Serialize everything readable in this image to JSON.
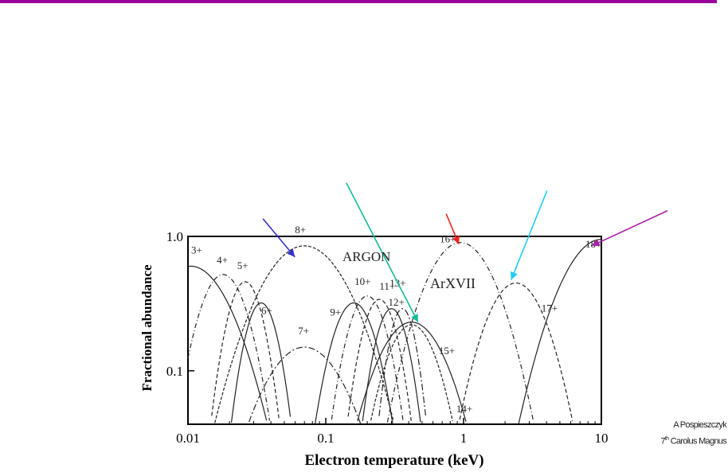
{
  "header": {
    "rule_color": "#990099"
  },
  "chart_data": {
    "type": "line",
    "title": "",
    "xlabel": "Electron temperature (keV)",
    "ylabel": "Fractional abundance",
    "xscale": "log",
    "yscale": "log",
    "xlim": [
      0.01,
      10
    ],
    "ylim": [
      0.04,
      1.0
    ],
    "xticks": [
      "0.01",
      "0.1",
      "1",
      "10"
    ],
    "yticks": [
      "1.0",
      "0.1"
    ],
    "grid": false,
    "legend": "none",
    "annotations": [
      "ARGON",
      "ArXVII"
    ],
    "series": [
      {
        "name": "3+",
        "peak_x": 0.0105,
        "peak_y": 0.6
      },
      {
        "name": "4+",
        "peak_x": 0.018,
        "peak_y": 0.52
      },
      {
        "name": "5+",
        "peak_x": 0.026,
        "peak_y": 0.46
      },
      {
        "name": "6+",
        "peak_x": 0.034,
        "peak_y": 0.32
      },
      {
        "name": "7+",
        "peak_x": 0.07,
        "peak_y": 0.15
      },
      {
        "name": "8+",
        "peak_x": 0.07,
        "peak_y": 0.85
      },
      {
        "name": "9+",
        "peak_x": 0.16,
        "peak_y": 0.32
      },
      {
        "name": "10+",
        "peak_x": 0.2,
        "peak_y": 0.36
      },
      {
        "name": "11+",
        "peak_x": 0.245,
        "peak_y": 0.34
      },
      {
        "name": "12+",
        "peak_x": 0.3,
        "peak_y": 0.29
      },
      {
        "name": "13+",
        "peak_x": 0.36,
        "peak_y": 0.29
      },
      {
        "name": "14+",
        "peak_x": 0.42,
        "peak_y": 0.22
      },
      {
        "name": "15+",
        "peak_x": 0.42,
        "peak_y": 0.23
      },
      {
        "name": "16+",
        "peak_x": 0.95,
        "peak_y": 0.9
      },
      {
        "name": "17+",
        "peak_x": 2.4,
        "peak_y": 0.45
      },
      {
        "name": "18+",
        "peak_x": 10,
        "peak_y": 0.95
      }
    ],
    "arrows": [
      {
        "color": "#3333cc",
        "points_to": "8+"
      },
      {
        "color": "#11bb99",
        "points_to": "15+"
      },
      {
        "color": "#ee2222",
        "points_to": "16+"
      },
      {
        "color": "#22ccee",
        "points_to": "17+"
      },
      {
        "color": "#aa22aa",
        "points_to": "18+"
      }
    ]
  },
  "credit": {
    "author": "A Pospieszczyk",
    "event_sup": "th",
    "event_text": "Carolus Magnus",
    "event_num": "7"
  }
}
